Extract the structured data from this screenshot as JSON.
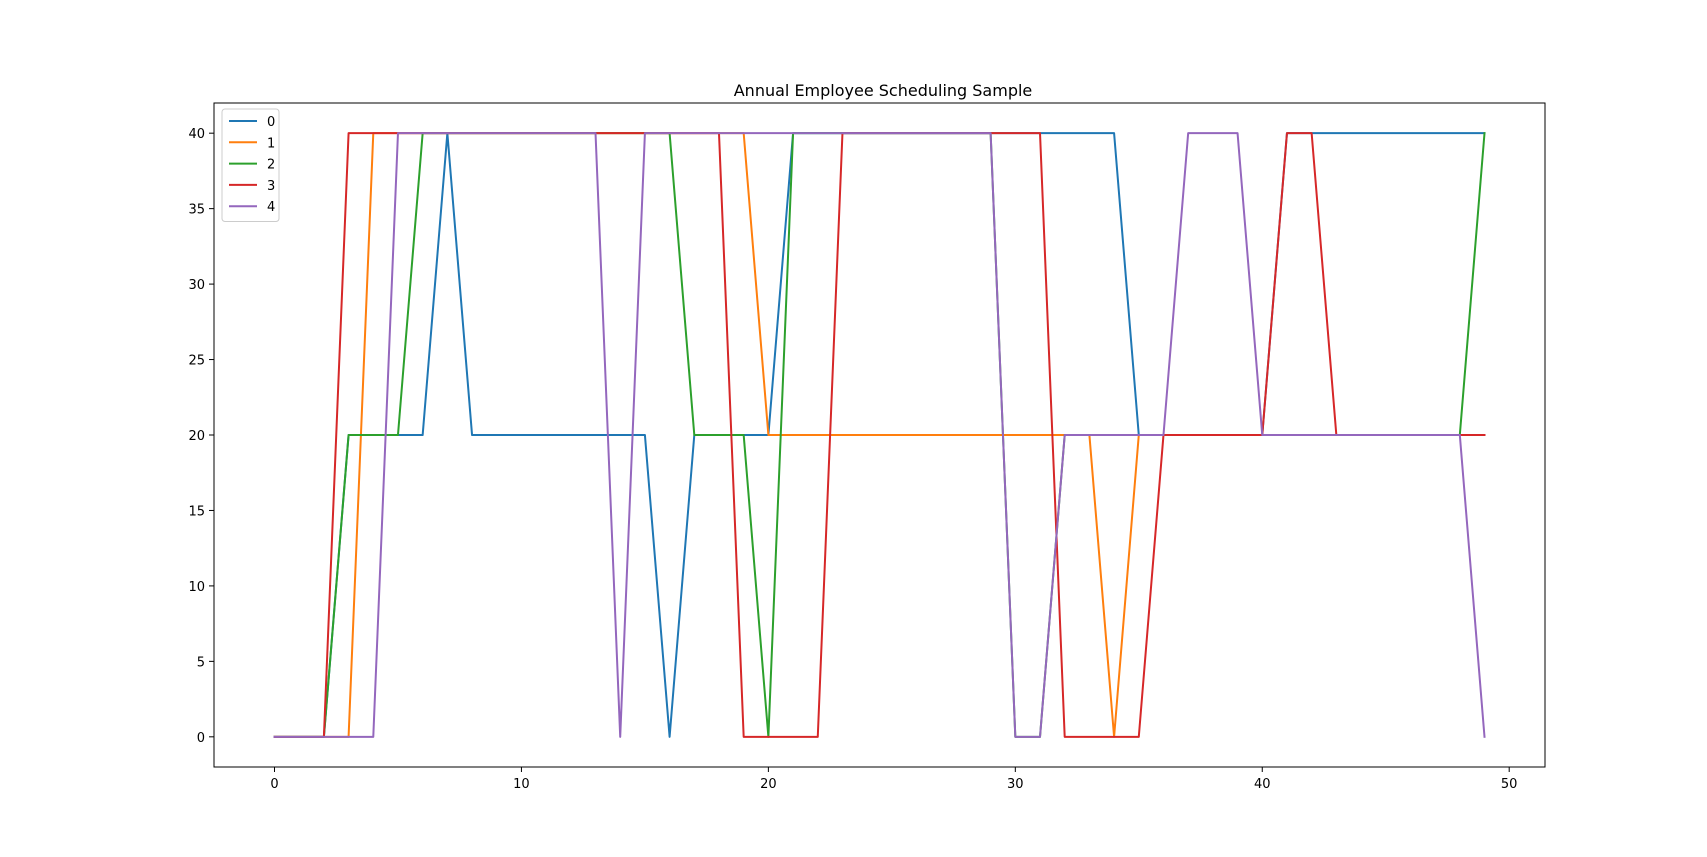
{
  "chart_data": {
    "type": "line",
    "title": "Annual Employee Scheduling Sample",
    "xlabel": "",
    "ylabel": "",
    "xlim": [
      -2.45,
      51.45
    ],
    "ylim": [
      -2,
      42
    ],
    "xticks": [
      0,
      10,
      20,
      30,
      40,
      50
    ],
    "yticks": [
      0,
      5,
      10,
      15,
      20,
      25,
      30,
      35,
      40
    ],
    "grid": false,
    "legend_position": "top-left",
    "x": [
      0,
      1,
      2,
      3,
      4,
      5,
      6,
      7,
      8,
      9,
      10,
      11,
      12,
      13,
      14,
      15,
      16,
      17,
      18,
      19,
      20,
      21,
      22,
      23,
      24,
      25,
      26,
      27,
      28,
      29,
      30,
      31,
      32,
      33,
      34,
      35,
      36,
      37,
      38,
      39,
      40,
      41,
      42,
      43,
      44,
      45,
      46,
      47,
      48,
      49
    ],
    "series": [
      {
        "name": "0",
        "color": "#1f77b4",
        "values": [
          0,
          0,
          0,
          20,
          20,
          20,
          20,
          40,
          20,
          20,
          20,
          20,
          20,
          20,
          20,
          20,
          0,
          20,
          20,
          20,
          20,
          40,
          40,
          40,
          40,
          40,
          40,
          40,
          40,
          40,
          40,
          40,
          40,
          40,
          40,
          20,
          20,
          20,
          20,
          20,
          20,
          40,
          40,
          40,
          40,
          40,
          40,
          40,
          40,
          40
        ]
      },
      {
        "name": "1",
        "color": "#ff7f0e",
        "values": [
          0,
          0,
          0,
          0,
          40,
          40,
          40,
          40,
          40,
          40,
          40,
          40,
          40,
          40,
          40,
          40,
          40,
          40,
          40,
          40,
          20,
          20,
          20,
          20,
          20,
          20,
          20,
          20,
          20,
          20,
          20,
          20,
          20,
          20,
          0,
          20,
          20,
          20,
          20,
          20,
          20,
          20,
          20,
          20,
          20,
          20,
          20,
          20,
          20,
          20
        ]
      },
      {
        "name": "2",
        "color": "#2ca02c",
        "values": [
          0,
          0,
          0,
          20,
          20,
          20,
          40,
          40,
          40,
          40,
          40,
          40,
          40,
          40,
          40,
          40,
          40,
          20,
          20,
          20,
          0,
          40,
          40,
          40,
          40,
          40,
          40,
          40,
          40,
          40,
          0,
          0,
          20,
          20,
          20,
          20,
          20,
          20,
          20,
          20,
          20,
          20,
          20,
          20,
          20,
          20,
          20,
          20,
          20,
          40
        ]
      },
      {
        "name": "3",
        "color": "#d62728",
        "values": [
          0,
          0,
          0,
          40,
          40,
          40,
          40,
          40,
          40,
          40,
          40,
          40,
          40,
          40,
          40,
          40,
          40,
          40,
          40,
          0,
          0,
          0,
          0,
          40,
          40,
          40,
          40,
          40,
          40,
          40,
          40,
          40,
          0,
          0,
          0,
          0,
          20,
          20,
          20,
          20,
          20,
          40,
          40,
          20,
          20,
          20,
          20,
          20,
          20,
          20
        ]
      },
      {
        "name": "4",
        "color": "#9467bd",
        "values": [
          0,
          0,
          0,
          0,
          0,
          40,
          40,
          40,
          40,
          40,
          40,
          40,
          40,
          40,
          0,
          40,
          40,
          40,
          40,
          40,
          40,
          40,
          40,
          40,
          40,
          40,
          40,
          40,
          40,
          40,
          0,
          0,
          20,
          20,
          20,
          20,
          20,
          40,
          40,
          40,
          20,
          20,
          20,
          20,
          20,
          20,
          20,
          20,
          20,
          0
        ]
      }
    ]
  }
}
